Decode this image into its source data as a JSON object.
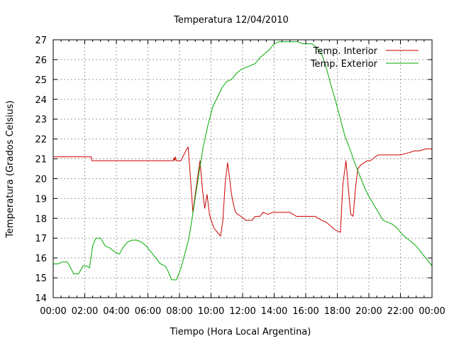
{
  "chart_data": {
    "type": "line",
    "title": "Temperatura 12/04/2010",
    "xlabel": "Tiempo (Hora Local Argentina)",
    "ylabel": "Temperatura (Grados Celsius)",
    "xlim": [
      0,
      24
    ],
    "ylim": [
      14,
      27
    ],
    "grid": true,
    "legend_position": "top-right",
    "x_tick_labels": [
      "00:00",
      "02:00",
      "04:00",
      "06:00",
      "08:00",
      "10:00",
      "12:00",
      "14:00",
      "16:00",
      "18:00",
      "20:00",
      "22:00",
      "00:00"
    ],
    "y_tick_labels": [
      "14",
      "15",
      "16",
      "17",
      "18",
      "19",
      "20",
      "21",
      "22",
      "23",
      "24",
      "25",
      "26",
      "27"
    ],
    "series": [
      {
        "name": "Temp. Interior",
        "color": "#cc0000",
        "x": [
          0,
          2.4,
          2.45,
          4,
          6,
          7.6,
          7.65,
          7.7,
          7.75,
          7.8,
          7.85,
          8.1,
          8.4,
          8.55,
          8.7,
          8.85,
          9.05,
          9.3,
          9.45,
          9.6,
          9.75,
          9.9,
          10.05,
          10.2,
          10.4,
          10.6,
          10.75,
          10.9,
          11.05,
          11.3,
          11.45,
          11.55,
          11.7,
          11.9,
          12.2,
          12.6,
          12.8,
          13.1,
          13.3,
          13.6,
          13.9,
          14.2,
          14.6,
          15,
          15.4,
          15.8,
          16.2,
          16.6,
          17,
          17.3,
          17.6,
          17.9,
          18.2,
          18.35,
          18.55,
          18.7,
          18.85,
          19,
          19.15,
          19.3,
          19.5,
          19.7,
          19.9,
          20.1,
          20.4,
          20.6,
          20.8,
          21,
          21.5,
          22,
          22.5,
          22.9,
          23.2,
          23.6,
          23.9,
          24
        ],
        "y": [
          21.1,
          21.1,
          20.9,
          20.9,
          20.9,
          20.9,
          21.05,
          20.9,
          21.1,
          20.9,
          20.9,
          20.9,
          21.4,
          21.6,
          20,
          18.3,
          19.5,
          20.9,
          19.5,
          18.5,
          19.2,
          18.2,
          17.8,
          17.5,
          17.3,
          17.1,
          17.9,
          19.8,
          20.8,
          19.2,
          18.6,
          18.3,
          18.2,
          18.1,
          17.9,
          17.9,
          18.1,
          18.1,
          18.3,
          18.2,
          18.3,
          18.3,
          18.3,
          18.3,
          18.1,
          18.1,
          18.1,
          18.1,
          17.9,
          17.8,
          17.6,
          17.4,
          17.3,
          19.7,
          20.9,
          19.5,
          18.2,
          18.1,
          19.5,
          20.5,
          20.7,
          20.8,
          20.9,
          20.9,
          21.1,
          21.2,
          21.2,
          21.2,
          21.2,
          21.2,
          21.3,
          21.4,
          21.4,
          21.5,
          21.5,
          21.5
        ]
      },
      {
        "name": "Temp. Exterior",
        "color": "#00aa00",
        "x": [
          0,
          0.3,
          0.6,
          0.9,
          1.1,
          1.3,
          1.6,
          1.9,
          2.1,
          2.3,
          2.5,
          2.7,
          3,
          3.3,
          3.6,
          3.9,
          4.2,
          4.4,
          4.7,
          5,
          5.3,
          5.6,
          5.9,
          6.2,
          6.5,
          6.8,
          7.1,
          7.3,
          7.5,
          7.8,
          8.1,
          8.3,
          8.6,
          8.9,
          9.2,
          9.5,
          9.8,
          10.1,
          10.4,
          10.7,
          11,
          11.3,
          11.6,
          11.9,
          12.2,
          12.5,
          12.8,
          13.1,
          13.4,
          13.7,
          14,
          14.3,
          14.6,
          14.9,
          15.2,
          15.5,
          15.8,
          16.1,
          16.4,
          16.7,
          17,
          17.3,
          17.6,
          17.9,
          18.2,
          18.5,
          18.8,
          19.1,
          19.4,
          19.7,
          20,
          20.3,
          20.6,
          20.9,
          21.2,
          21.5,
          21.8,
          22.1,
          22.4,
          22.7,
          23,
          23.3,
          23.6,
          23.9,
          24
        ],
        "y": [
          15.7,
          15.7,
          15.8,
          15.8,
          15.5,
          15.2,
          15.2,
          15.6,
          15.6,
          15.5,
          16.6,
          17.0,
          17.0,
          16.6,
          16.5,
          16.3,
          16.2,
          16.5,
          16.8,
          16.9,
          16.9,
          16.8,
          16.6,
          16.3,
          16.0,
          15.7,
          15.6,
          15.3,
          14.9,
          14.9,
          15.5,
          16.1,
          17.0,
          18.5,
          20.1,
          21.6,
          22.7,
          23.6,
          24.1,
          24.6,
          24.9,
          25.0,
          25.3,
          25.5,
          25.6,
          25.7,
          25.8,
          26.1,
          26.3,
          26.5,
          26.8,
          26.9,
          26.9,
          26.9,
          26.9,
          26.9,
          26.8,
          26.8,
          26.8,
          26.6,
          26.3,
          25.6,
          24.7,
          23.9,
          23.0,
          22.1,
          21.5,
          20.8,
          20.2,
          19.6,
          19.1,
          18.7,
          18.3,
          17.9,
          17.8,
          17.7,
          17.5,
          17.2,
          17.0,
          16.8,
          16.6,
          16.3,
          16.0,
          15.7,
          15.6
        ]
      }
    ]
  }
}
